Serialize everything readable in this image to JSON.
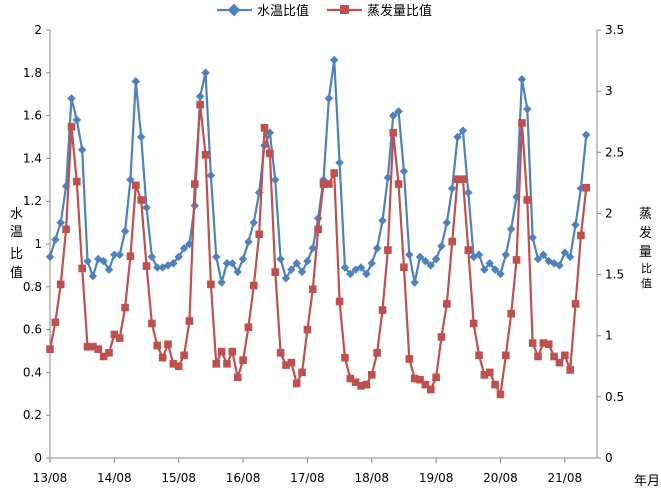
{
  "chart_data": {
    "type": "line",
    "title": "",
    "xlabel": "年月",
    "ylabel_left_chars": [
      "水",
      "温",
      "比",
      "值"
    ],
    "ylabel_right_chars": [
      "蒸",
      "发",
      "量",
      "比",
      "值"
    ],
    "x_tick_labels": [
      "13/08",
      "14/08",
      "15/08",
      "16/08",
      "17/08",
      "18/08",
      "19/08",
      "20/08",
      "21/08"
    ],
    "x_range_months": [
      0,
      102
    ],
    "ylim_left": [
      0,
      2
    ],
    "yticks_left": [
      "0",
      "0.2",
      "0.4",
      "0.6",
      "0.8",
      "1",
      "1.2",
      "1.4",
      "1.6",
      "1.8",
      "2"
    ],
    "ylim_right": [
      0,
      3.5
    ],
    "yticks_right": [
      "0",
      "0.5",
      "1",
      "1.5",
      "2",
      "2.5",
      "3",
      "3.5"
    ],
    "grid": false,
    "legend_position": "top-center",
    "series": [
      {
        "name": "水温比值",
        "axis": "left",
        "color": "#4f81bd",
        "marker": "diamond",
        "values": [
          0.94,
          1.02,
          1.1,
          1.27,
          1.68,
          1.58,
          1.44,
          0.92,
          0.85,
          0.93,
          0.92,
          0.88,
          0.95,
          0.95,
          1.06,
          1.3,
          1.76,
          1.5,
          1.17,
          0.94,
          0.89,
          0.89,
          0.9,
          0.91,
          0.94,
          0.98,
          1.0,
          1.18,
          1.69,
          1.8,
          1.32,
          0.94,
          0.82,
          0.91,
          0.91,
          0.87,
          0.93,
          1.01,
          1.1,
          1.24,
          1.46,
          1.52,
          1.3,
          0.93,
          0.84,
          0.88,
          0.91,
          0.87,
          0.92,
          0.98,
          1.12,
          1.3,
          1.68,
          1.86,
          1.38,
          0.89,
          0.86,
          0.88,
          0.89,
          0.86,
          0.91,
          0.98,
          1.11,
          1.31,
          1.6,
          1.62,
          1.34,
          0.95,
          0.82,
          0.94,
          0.92,
          0.9,
          0.93,
          0.99,
          1.1,
          1.26,
          1.5,
          1.53,
          1.24,
          0.94,
          0.95,
          0.88,
          0.91,
          0.88,
          0.86,
          0.95,
          1.07,
          1.22,
          1.77,
          1.63,
          1.03,
          0.93,
          0.95,
          0.92,
          0.91,
          0.9,
          0.96,
          0.94,
          1.09,
          1.26,
          1.51
        ]
      },
      {
        "name": "蒸发量比值",
        "axis": "right",
        "color": "#c0504d",
        "marker": "square",
        "values": [
          0.89,
          1.11,
          1.42,
          1.87,
          2.71,
          2.26,
          1.55,
          0.91,
          0.91,
          0.89,
          0.83,
          0.86,
          1.01,
          0.98,
          1.23,
          1.65,
          2.23,
          2.11,
          1.57,
          1.1,
          0.92,
          0.82,
          0.93,
          0.77,
          0.75,
          0.84,
          1.12,
          2.24,
          2.89,
          2.48,
          1.42,
          0.77,
          0.87,
          0.77,
          0.87,
          0.66,
          0.8,
          1.07,
          1.41,
          1.83,
          2.7,
          2.49,
          1.52,
          0.86,
          0.76,
          0.78,
          0.61,
          0.7,
          1.05,
          1.38,
          1.87,
          2.24,
          2.24,
          2.33,
          1.28,
          0.82,
          0.65,
          0.62,
          0.59,
          0.6,
          0.68,
          0.86,
          1.21,
          1.7,
          2.66,
          2.24,
          1.56,
          0.81,
          0.65,
          0.64,
          0.6,
          0.56,
          0.66,
          0.99,
          1.26,
          1.77,
          2.28,
          2.28,
          1.7,
          1.1,
          0.84,
          0.68,
          0.7,
          0.6,
          0.52,
          0.84,
          1.18,
          1.62,
          2.74,
          2.11,
          0.94,
          0.83,
          0.94,
          0.93,
          0.83,
          0.78,
          0.84,
          0.72,
          1.26,
          1.82,
          2.21
        ]
      }
    ]
  }
}
